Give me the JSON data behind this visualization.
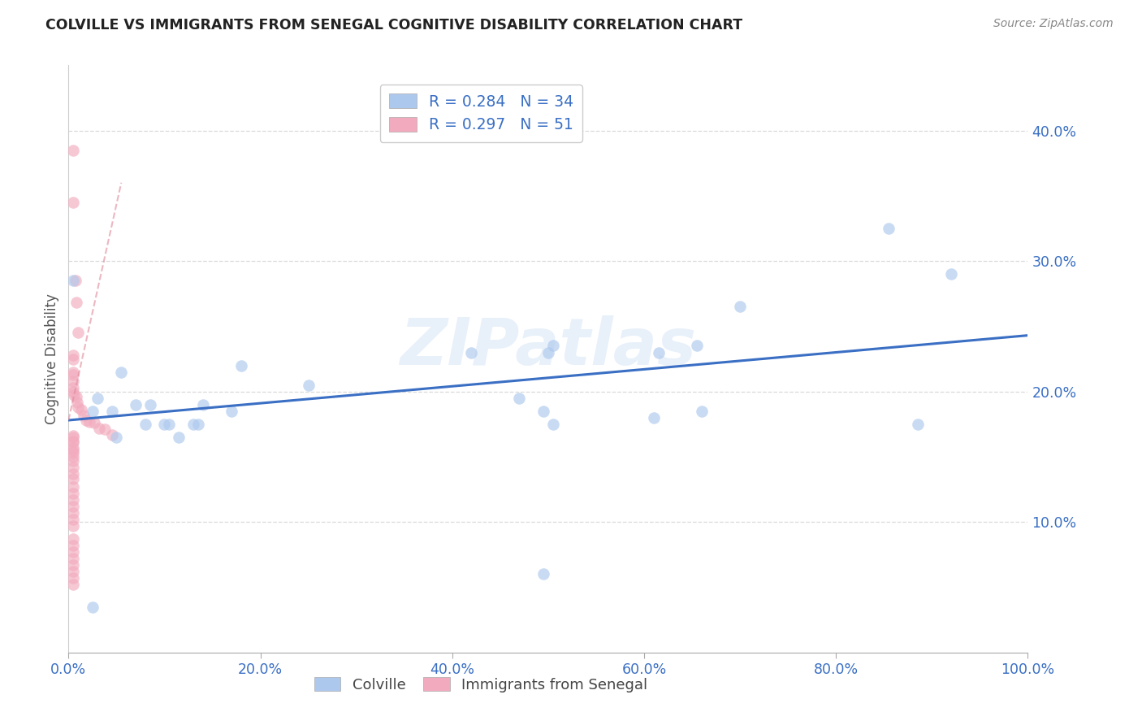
{
  "title": "COLVILLE VS IMMIGRANTS FROM SENEGAL COGNITIVE DISABILITY CORRELATION CHART",
  "source": "Source: ZipAtlas.com",
  "ylabel": "Cognitive Disability",
  "xmin": 0.0,
  "xmax": 1.0,
  "ymin": 0.0,
  "ymax": 0.45,
  "yticks": [
    0.1,
    0.2,
    0.3,
    0.4
  ],
  "ytick_labels": [
    "10.0%",
    "20.0%",
    "30.0%",
    "40.0%"
  ],
  "xticks": [
    0.0,
    0.2,
    0.4,
    0.6,
    0.8,
    1.0
  ],
  "xtick_labels": [
    "0.0%",
    "20.0%",
    "40.0%",
    "60.0%",
    "80.0%",
    "100.0%"
  ],
  "watermark": "ZIPatlas",
  "legend_entry1": "R = 0.284   N = 34",
  "legend_entry2": "R = 0.297   N = 51",
  "colville_scatter_x": [
    0.005,
    0.03,
    0.055,
    0.085,
    0.105,
    0.13,
    0.045,
    0.07,
    0.1,
    0.14,
    0.18,
    0.25,
    0.42,
    0.47,
    0.5,
    0.505,
    0.495,
    0.615,
    0.655,
    0.66,
    0.7,
    0.855,
    0.885,
    0.92,
    0.025,
    0.05,
    0.08,
    0.115,
    0.135,
    0.17,
    0.505,
    0.495,
    0.61,
    0.025
  ],
  "colville_scatter_y": [
    0.285,
    0.195,
    0.215,
    0.19,
    0.175,
    0.175,
    0.185,
    0.19,
    0.175,
    0.19,
    0.22,
    0.205,
    0.23,
    0.195,
    0.23,
    0.235,
    0.185,
    0.23,
    0.235,
    0.185,
    0.265,
    0.325,
    0.175,
    0.29,
    0.185,
    0.165,
    0.175,
    0.165,
    0.175,
    0.185,
    0.175,
    0.06,
    0.18,
    0.035
  ],
  "colville_line_x": [
    0.0,
    1.0
  ],
  "colville_line_y": [
    0.178,
    0.243
  ],
  "senegal_scatter_x": [
    0.005,
    0.005,
    0.007,
    0.008,
    0.01,
    0.005,
    0.005,
    0.005,
    0.005,
    0.005,
    0.005,
    0.005,
    0.006,
    0.008,
    0.009,
    0.01,
    0.013,
    0.016,
    0.018,
    0.022,
    0.027,
    0.032,
    0.038,
    0.045,
    0.005,
    0.005,
    0.005,
    0.005,
    0.005,
    0.005,
    0.005,
    0.005,
    0.005,
    0.005,
    0.005,
    0.005,
    0.005,
    0.005,
    0.005,
    0.005,
    0.005,
    0.005,
    0.005,
    0.005,
    0.005,
    0.005,
    0.005,
    0.005,
    0.005,
    0.005,
    0.005
  ],
  "senegal_scatter_y": [
    0.385,
    0.345,
    0.285,
    0.268,
    0.245,
    0.228,
    0.225,
    0.215,
    0.213,
    0.208,
    0.203,
    0.2,
    0.197,
    0.196,
    0.192,
    0.188,
    0.186,
    0.182,
    0.178,
    0.177,
    0.176,
    0.172,
    0.171,
    0.167,
    0.166,
    0.165,
    0.162,
    0.161,
    0.157,
    0.155,
    0.153,
    0.15,
    0.147,
    0.142,
    0.137,
    0.133,
    0.127,
    0.122,
    0.117,
    0.112,
    0.107,
    0.102,
    0.097,
    0.087,
    0.082,
    0.077,
    0.072,
    0.067,
    0.062,
    0.057,
    0.052
  ],
  "senegal_line_x": [
    0.0,
    0.055
  ],
  "senegal_line_y": [
    0.178,
    0.36
  ],
  "colville_color": "#adc8ed",
  "senegal_color": "#f2abbe",
  "colville_line_color": "#3a6fc4",
  "senegal_line_color": "#e08898",
  "grid_color": "#d0d0d0",
  "axis_color": "#3a6fc4",
  "title_color": "#222222",
  "source_color": "#888888",
  "background_color": "#ffffff"
}
